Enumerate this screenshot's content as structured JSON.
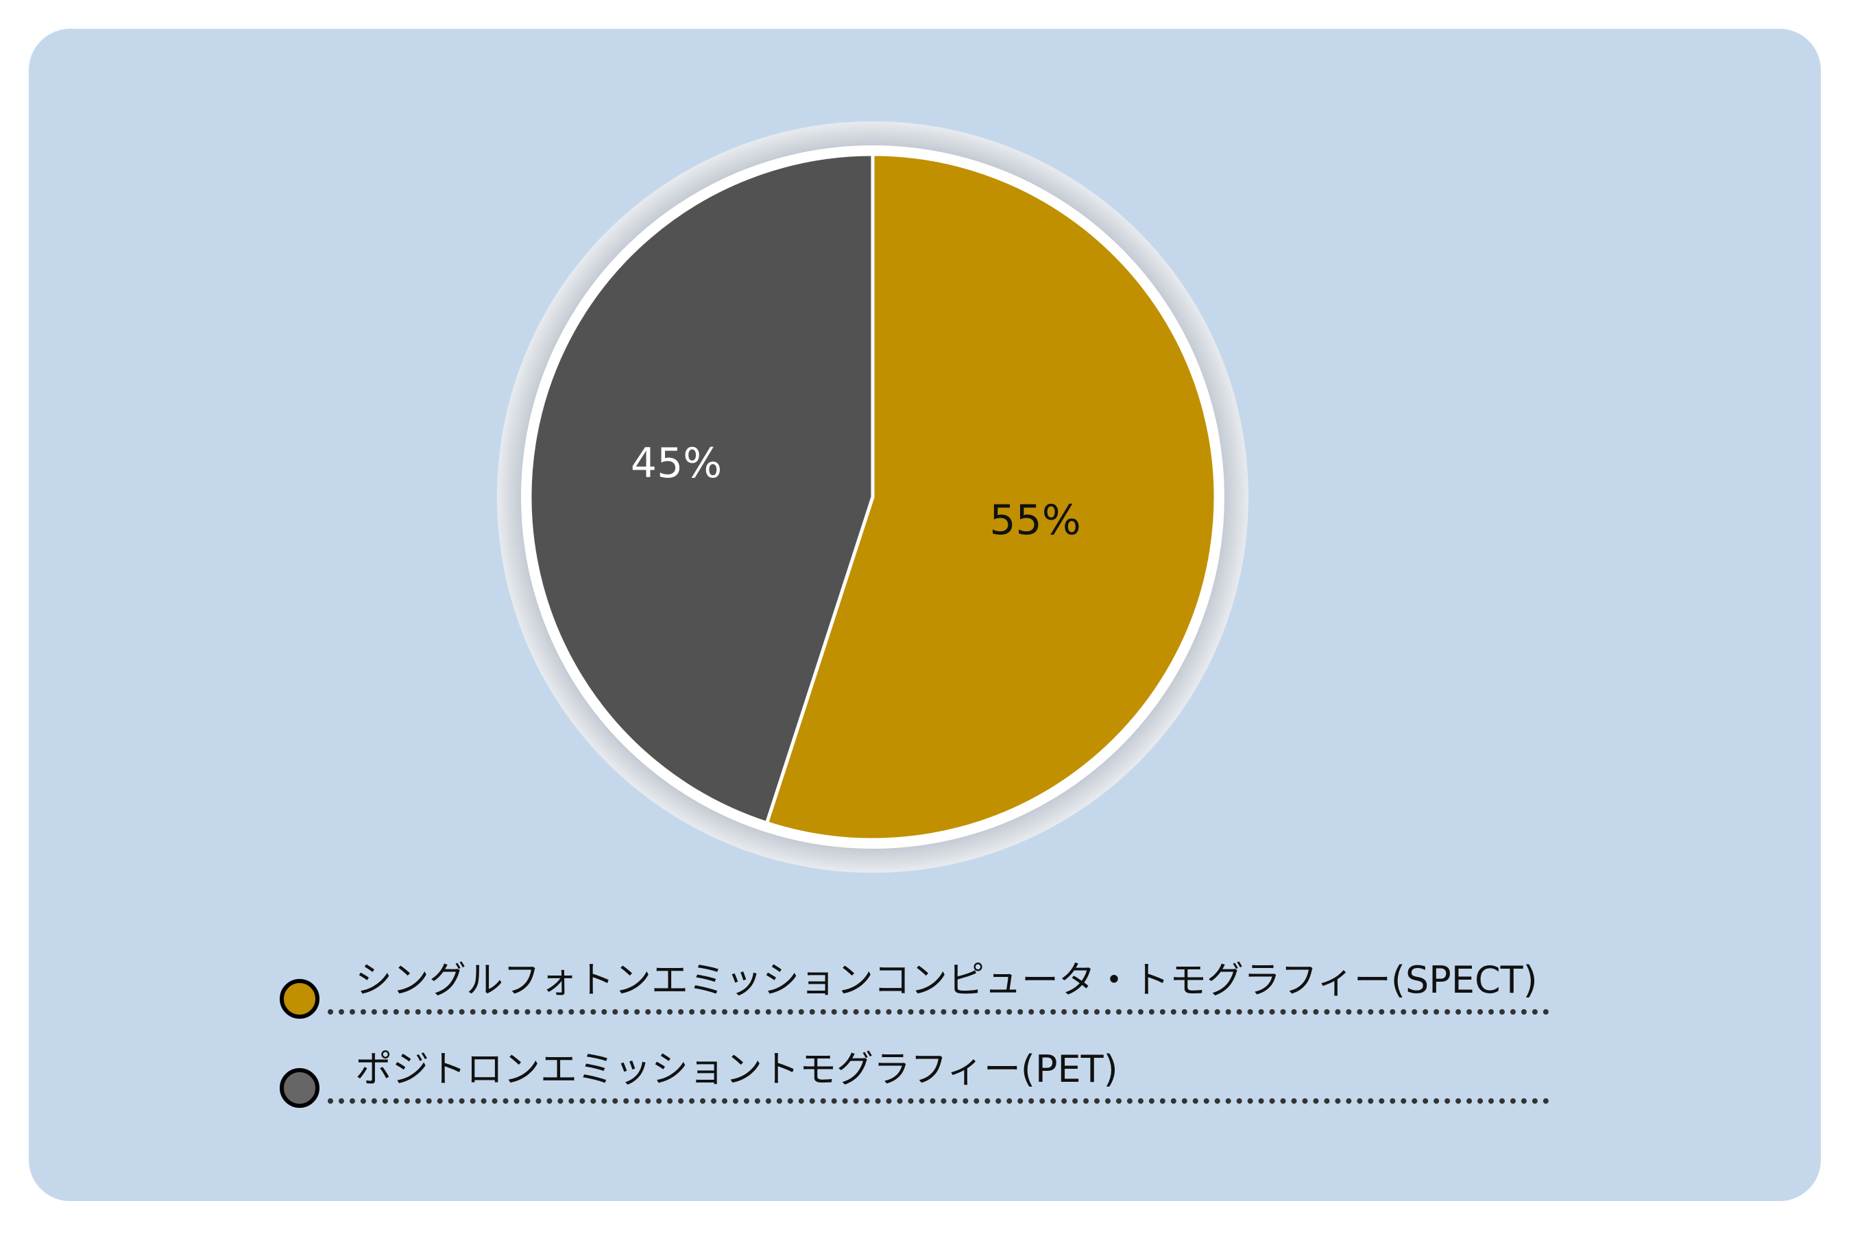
{
  "chart_data": {
    "type": "pie",
    "categories": [
      "シングルフォトンエミッションコンピュータ・トモグラフィー(SPECT)",
      "ポジトロンエミッショントモグラフィー(PET)"
    ],
    "values": [
      55,
      45
    ],
    "data_labels": [
      "55%",
      "45%"
    ],
    "colors": [
      "#c09000",
      "#525252"
    ],
    "label_colors": [
      "#111111",
      "#ffffff"
    ],
    "legend_swatch_colors": [
      "#c09000",
      "#666666"
    ],
    "legend_position": "bottom",
    "title": ""
  }
}
